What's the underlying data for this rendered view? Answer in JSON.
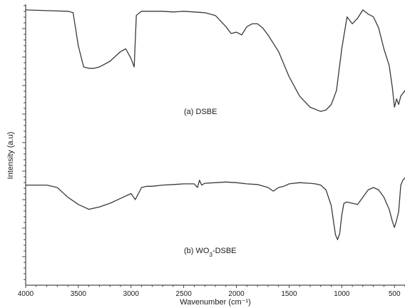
{
  "chart_data": {
    "type": "line",
    "title": "",
    "xlabel": "Wavenumber (cm⁻¹)",
    "ylabel": "Intensity (a.u)",
    "xlim": [
      4000,
      400
    ],
    "x_reversed": true,
    "y_ticklabels_shown": false,
    "grid": false,
    "legend": "none",
    "xticks": [
      4000,
      3500,
      3000,
      2500,
      2000,
      1500,
      1000,
      500
    ],
    "xtick_labels": [
      "4000",
      "3500",
      "3000",
      "2500",
      "2000",
      "1500",
      "1000",
      "500"
    ],
    "series": [
      {
        "label_text": "(a) DSBE",
        "color": "#3a3a3a",
        "x": [
          4000,
          3800,
          3600,
          3550,
          3500,
          3450,
          3400,
          3350,
          3300,
          3200,
          3100,
          3050,
          3000,
          2970,
          2950,
          2920,
          2900,
          2850,
          2800,
          2700,
          2600,
          2500,
          2400,
          2300,
          2200,
          2100,
          2050,
          2000,
          1950,
          1900,
          1850,
          1800,
          1750,
          1700,
          1600,
          1500,
          1400,
          1300,
          1200,
          1150,
          1100,
          1050,
          1000,
          950,
          900,
          850,
          800,
          750,
          700,
          650,
          600,
          550,
          520,
          500,
          480,
          460,
          440,
          420,
          400
        ],
        "y": [
          0.98,
          0.975,
          0.97,
          0.96,
          0.72,
          0.57,
          0.56,
          0.56,
          0.57,
          0.61,
          0.68,
          0.7,
          0.63,
          0.57,
          0.94,
          0.96,
          0.97,
          0.97,
          0.97,
          0.97,
          0.965,
          0.97,
          0.965,
          0.96,
          0.94,
          0.86,
          0.81,
          0.82,
          0.8,
          0.86,
          0.88,
          0.88,
          0.85,
          0.8,
          0.68,
          0.5,
          0.36,
          0.28,
          0.25,
          0.26,
          0.3,
          0.4,
          0.7,
          0.93,
          0.88,
          0.92,
          0.98,
          0.95,
          0.93,
          0.85,
          0.7,
          0.58,
          0.42,
          0.28,
          0.34,
          0.3,
          0.36,
          0.38,
          0.4
        ]
      },
      {
        "label_text": "(b) WO3-DSBE",
        "label_main": "(b) WO",
        "label_sub": "3",
        "label_tail": "-DSBE",
        "color": "#3a3a3a",
        "x": [
          4000,
          3900,
          3800,
          3750,
          3700,
          3650,
          3600,
          3550,
          3500,
          3450,
          3400,
          3300,
          3200,
          3100,
          3000,
          2960,
          2930,
          2900,
          2850,
          2800,
          2700,
          2600,
          2500,
          2400,
          2370,
          2350,
          2330,
          2300,
          2200,
          2100,
          2000,
          1900,
          1800,
          1700,
          1650,
          1600,
          1550,
          1500,
          1400,
          1300,
          1250,
          1200,
          1150,
          1100,
          1080,
          1060,
          1040,
          1020,
          1000,
          980,
          950,
          900,
          850,
          800,
          750,
          700,
          650,
          600,
          550,
          520,
          500,
          480,
          460,
          440,
          420,
          400
        ],
        "y": [
          0.62,
          0.62,
          0.62,
          0.61,
          0.6,
          0.56,
          0.52,
          0.49,
          0.46,
          0.44,
          0.42,
          0.44,
          0.47,
          0.51,
          0.55,
          0.5,
          0.55,
          0.6,
          0.61,
          0.61,
          0.62,
          0.625,
          0.63,
          0.63,
          0.6,
          0.66,
          0.62,
          0.635,
          0.64,
          0.645,
          0.64,
          0.63,
          0.625,
          0.6,
          0.57,
          0.6,
          0.61,
          0.63,
          0.64,
          0.635,
          0.63,
          0.62,
          0.58,
          0.45,
          0.33,
          0.21,
          0.17,
          0.22,
          0.37,
          0.47,
          0.48,
          0.47,
          0.46,
          0.52,
          0.58,
          0.6,
          0.58,
          0.52,
          0.42,
          0.32,
          0.27,
          0.33,
          0.4,
          0.62,
          0.66,
          0.68
        ]
      }
    ]
  }
}
